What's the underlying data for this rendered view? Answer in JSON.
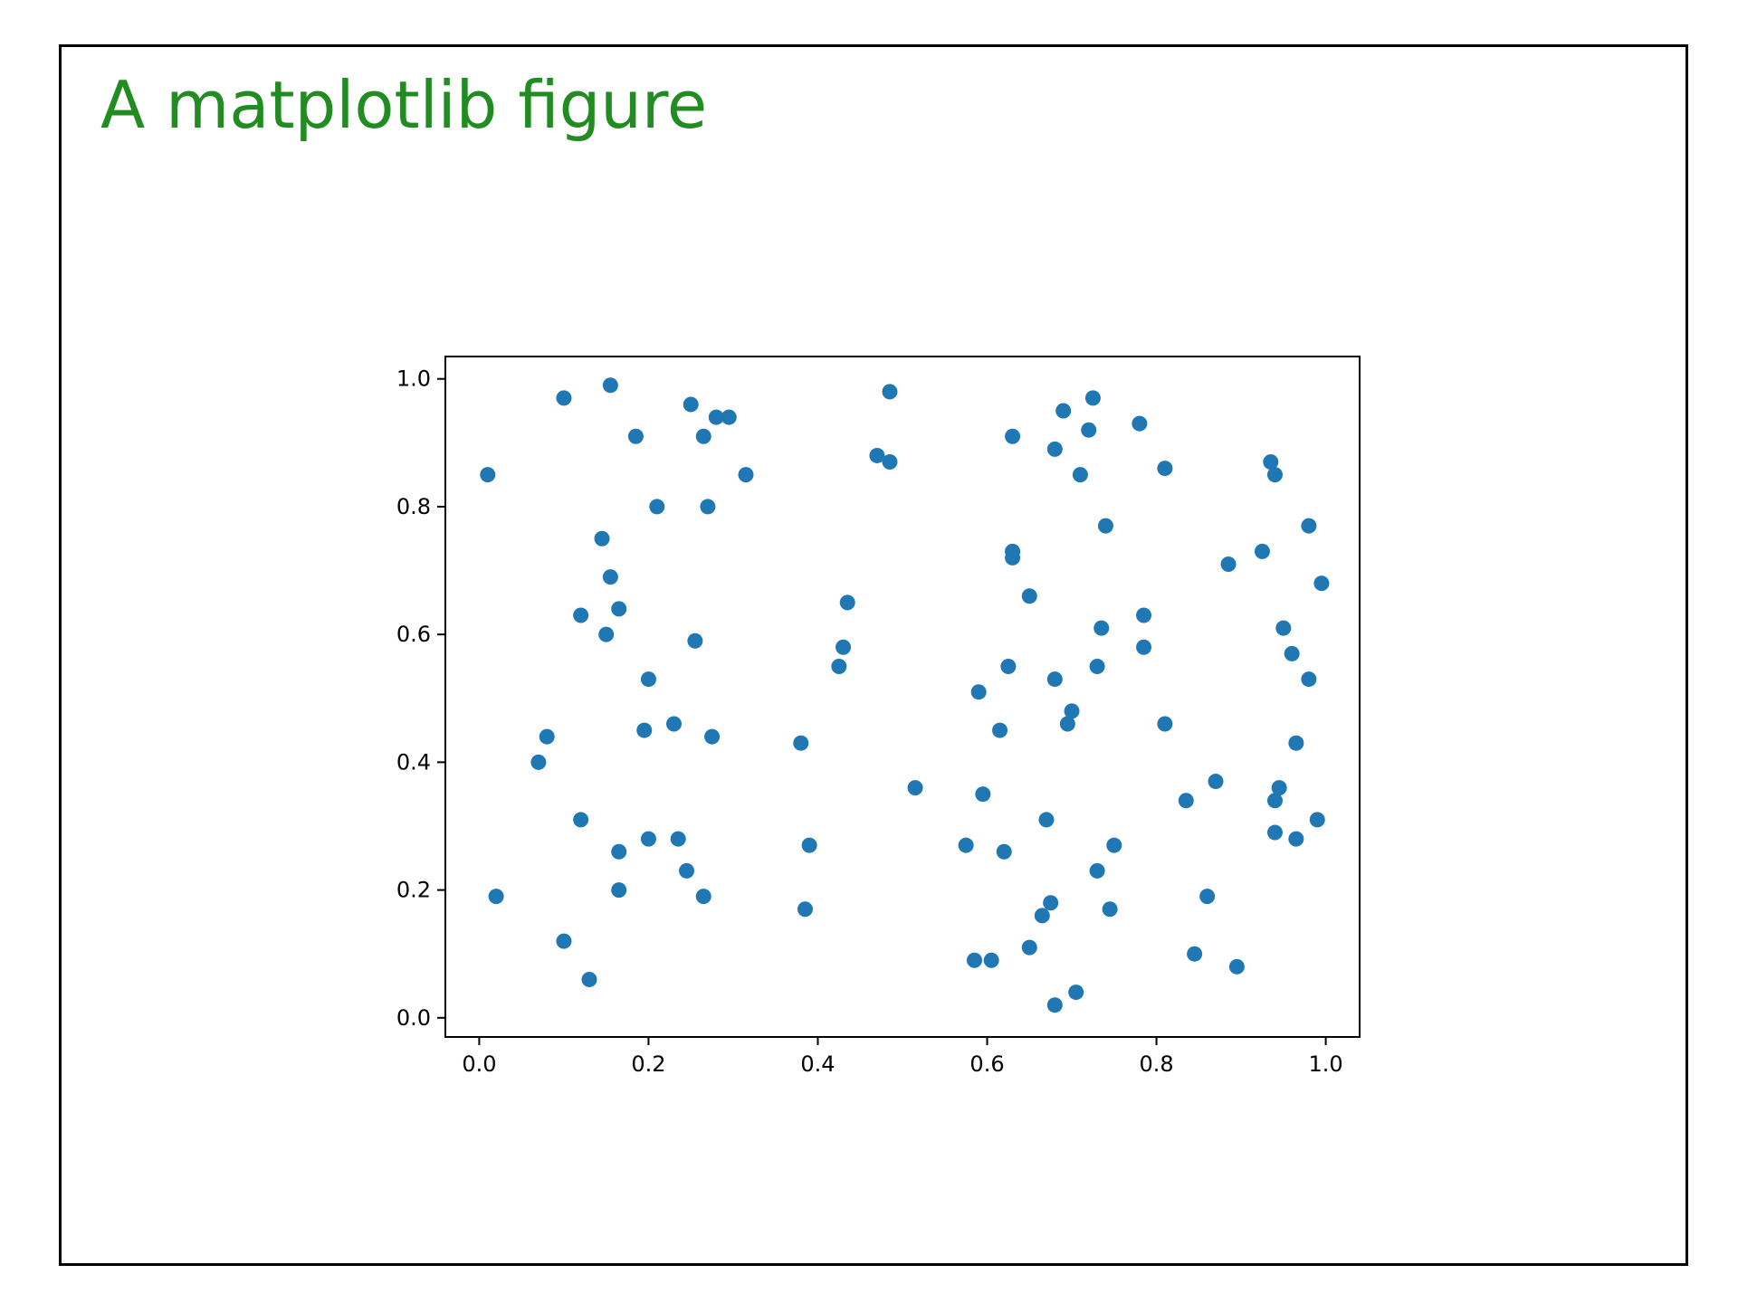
{
  "slide": {
    "title": "A matplotlib figure"
  },
  "colors": {
    "title": "#228b22",
    "points": "#1f77b4",
    "frame": "#000000"
  },
  "chart_data": {
    "type": "scatter",
    "title": "",
    "xlabel": "",
    "ylabel": "",
    "xlim": [
      -0.04,
      1.04
    ],
    "ylim": [
      -0.03,
      1.035
    ],
    "xticks": [
      0.0,
      0.2,
      0.4,
      0.6,
      0.8,
      1.0
    ],
    "yticks": [
      0.0,
      0.2,
      0.4,
      0.6,
      0.8,
      1.0
    ],
    "xtick_labels": [
      "0.0",
      "0.2",
      "0.4",
      "0.6",
      "0.8",
      "1.0"
    ],
    "ytick_labels": [
      "0.0",
      "0.2",
      "0.4",
      "0.6",
      "0.8",
      "1.0"
    ],
    "grid": false,
    "legend": "none",
    "points": [
      [
        0.01,
        0.85
      ],
      [
        0.02,
        0.19
      ],
      [
        0.07,
        0.4
      ],
      [
        0.08,
        0.44
      ],
      [
        0.1,
        0.97
      ],
      [
        0.1,
        0.12
      ],
      [
        0.12,
        0.63
      ],
      [
        0.12,
        0.31
      ],
      [
        0.13,
        0.06
      ],
      [
        0.145,
        0.75
      ],
      [
        0.155,
        0.99
      ],
      [
        0.155,
        0.69
      ],
      [
        0.15,
        0.6
      ],
      [
        0.165,
        0.64
      ],
      [
        0.165,
        0.26
      ],
      [
        0.165,
        0.2
      ],
      [
        0.185,
        0.91
      ],
      [
        0.195,
        0.45
      ],
      [
        0.2,
        0.53
      ],
      [
        0.2,
        0.28
      ],
      [
        0.21,
        0.8
      ],
      [
        0.23,
        0.46
      ],
      [
        0.235,
        0.28
      ],
      [
        0.245,
        0.23
      ],
      [
        0.25,
        0.96
      ],
      [
        0.255,
        0.59
      ],
      [
        0.265,
        0.91
      ],
      [
        0.27,
        0.8
      ],
      [
        0.265,
        0.19
      ],
      [
        0.275,
        0.44
      ],
      [
        0.28,
        0.94
      ],
      [
        0.295,
        0.94
      ],
      [
        0.315,
        0.85
      ],
      [
        0.38,
        0.43
      ],
      [
        0.385,
        0.17
      ],
      [
        0.39,
        0.27
      ],
      [
        0.425,
        0.55
      ],
      [
        0.43,
        0.58
      ],
      [
        0.435,
        0.65
      ],
      [
        0.47,
        0.88
      ],
      [
        0.485,
        0.98
      ],
      [
        0.485,
        0.87
      ],
      [
        0.515,
        0.36
      ],
      [
        0.575,
        0.27
      ],
      [
        0.585,
        0.09
      ],
      [
        0.59,
        0.51
      ],
      [
        0.595,
        0.35
      ],
      [
        0.605,
        0.09
      ],
      [
        0.615,
        0.45
      ],
      [
        0.62,
        0.26
      ],
      [
        0.625,
        0.55
      ],
      [
        0.63,
        0.91
      ],
      [
        0.63,
        0.73
      ],
      [
        0.63,
        0.72
      ],
      [
        0.65,
        0.66
      ],
      [
        0.65,
        0.11
      ],
      [
        0.665,
        0.16
      ],
      [
        0.67,
        0.31
      ],
      [
        0.675,
        0.18
      ],
      [
        0.68,
        0.02
      ],
      [
        0.68,
        0.53
      ],
      [
        0.68,
        0.89
      ],
      [
        0.69,
        0.95
      ],
      [
        0.695,
        0.46
      ],
      [
        0.7,
        0.48
      ],
      [
        0.705,
        0.04
      ],
      [
        0.71,
        0.85
      ],
      [
        0.72,
        0.92
      ],
      [
        0.725,
        0.97
      ],
      [
        0.73,
        0.55
      ],
      [
        0.73,
        0.23
      ],
      [
        0.735,
        0.61
      ],
      [
        0.74,
        0.77
      ],
      [
        0.745,
        0.17
      ],
      [
        0.75,
        0.27
      ],
      [
        0.78,
        0.93
      ],
      [
        0.785,
        0.63
      ],
      [
        0.785,
        0.58
      ],
      [
        0.81,
        0.86
      ],
      [
        0.81,
        0.46
      ],
      [
        0.835,
        0.34
      ],
      [
        0.845,
        0.1
      ],
      [
        0.86,
        0.19
      ],
      [
        0.87,
        0.37
      ],
      [
        0.885,
        0.71
      ],
      [
        0.895,
        0.08
      ],
      [
        0.925,
        0.73
      ],
      [
        0.935,
        0.87
      ],
      [
        0.94,
        0.85
      ],
      [
        0.94,
        0.29
      ],
      [
        0.94,
        0.34
      ],
      [
        0.945,
        0.36
      ],
      [
        0.95,
        0.61
      ],
      [
        0.96,
        0.57
      ],
      [
        0.965,
        0.28
      ],
      [
        0.965,
        0.43
      ],
      [
        0.98,
        0.77
      ],
      [
        0.98,
        0.53
      ],
      [
        0.99,
        0.31
      ],
      [
        0.995,
        0.68
      ]
    ]
  }
}
